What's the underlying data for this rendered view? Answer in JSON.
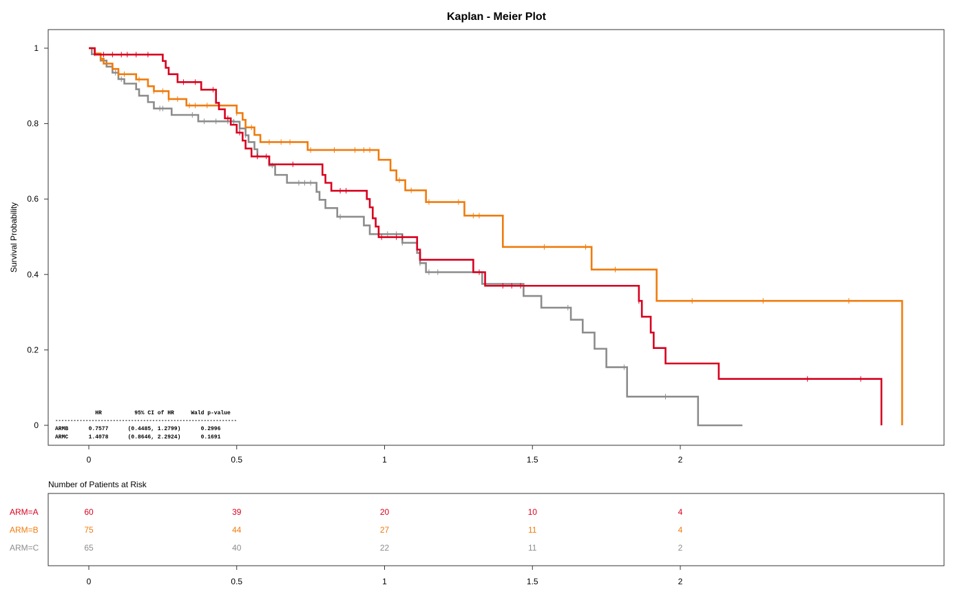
{
  "chart_data": {
    "type": "line",
    "title": "Kaplan - Meier Plot",
    "ylabel": "Survival Probability",
    "xlabel": "",
    "xlim": [
      -0.14,
      2.9
    ],
    "ylim": [
      -0.05,
      1.05
    ],
    "x_ticks": [
      0,
      0.5,
      1,
      1.5,
      2
    ],
    "x_tick_labels": [
      "0",
      "0.5",
      "1",
      "1.5",
      "2"
    ],
    "y_ticks": [
      0,
      0.2,
      0.4,
      0.6,
      0.8,
      1
    ],
    "y_tick_labels": [
      "0",
      "0.2",
      "0.4",
      "0.6",
      "0.8",
      "1"
    ],
    "series": [
      {
        "name": "ARM=A",
        "color": "#d7001f",
        "steps": [
          [
            0,
            1
          ],
          [
            0.02,
            0.983
          ],
          [
            0.25,
            0.966
          ],
          [
            0.26,
            0.948
          ],
          [
            0.27,
            0.931
          ],
          [
            0.3,
            0.91
          ],
          [
            0.38,
            0.89
          ],
          [
            0.43,
            0.855
          ],
          [
            0.44,
            0.838
          ],
          [
            0.46,
            0.814
          ],
          [
            0.48,
            0.797
          ],
          [
            0.5,
            0.776
          ],
          [
            0.52,
            0.755
          ],
          [
            0.53,
            0.734
          ],
          [
            0.55,
            0.713
          ],
          [
            0.61,
            0.692
          ],
          [
            0.79,
            0.664
          ],
          [
            0.8,
            0.643
          ],
          [
            0.82,
            0.622
          ],
          [
            0.94,
            0.6
          ],
          [
            0.95,
            0.578
          ],
          [
            0.96,
            0.549
          ],
          [
            0.97,
            0.527
          ],
          [
            0.98,
            0.499
          ],
          [
            1.11,
            0.466
          ],
          [
            1.12,
            0.439
          ],
          [
            1.3,
            0.406
          ],
          [
            1.34,
            0.37
          ],
          [
            1.86,
            0.33
          ],
          [
            1.87,
            0.288
          ],
          [
            1.9,
            0.246
          ],
          [
            1.91,
            0.205
          ],
          [
            1.95,
            0.164
          ],
          [
            2.13,
            0.123
          ],
          [
            2.68,
            0
          ]
        ],
        "censor_x": [
          0.05,
          0.08,
          0.11,
          0.13,
          0.16,
          0.2,
          0.32,
          0.36,
          0.42,
          0.47,
          0.51,
          0.57,
          0.6,
          0.69,
          0.85,
          0.87,
          0.99,
          1.04,
          1.06,
          1.32,
          1.4,
          1.43,
          1.46,
          1.86,
          2.43,
          2.61
        ],
        "end_x": 2.68
      },
      {
        "name": "ARM=B",
        "color": "#f07b0c",
        "steps": [
          [
            0,
            1
          ],
          [
            0.02,
            0.986
          ],
          [
            0.04,
            0.972
          ],
          [
            0.05,
            0.959
          ],
          [
            0.08,
            0.945
          ],
          [
            0.1,
            0.931
          ],
          [
            0.15,
            0.931
          ],
          [
            0.16,
            0.917
          ],
          [
            0.19,
            0.917
          ],
          [
            0.2,
            0.899
          ],
          [
            0.22,
            0.886
          ],
          [
            0.27,
            0.865
          ],
          [
            0.28,
            0.865
          ],
          [
            0.33,
            0.848
          ],
          [
            0.34,
            0.848
          ],
          [
            0.5,
            0.828
          ],
          [
            0.52,
            0.81
          ],
          [
            0.53,
            0.79
          ],
          [
            0.56,
            0.77
          ],
          [
            0.58,
            0.751
          ],
          [
            0.74,
            0.73
          ],
          [
            0.98,
            0.704
          ],
          [
            1.02,
            0.676
          ],
          [
            1.04,
            0.65
          ],
          [
            1.07,
            0.623
          ],
          [
            1.14,
            0.592
          ],
          [
            1.27,
            0.556
          ],
          [
            1.4,
            0.473
          ],
          [
            1.7,
            0.413
          ],
          [
            1.92,
            0.33
          ],
          [
            2.75,
            0
          ]
        ],
        "censor_x": [
          0.02,
          0.04,
          0.1,
          0.12,
          0.17,
          0.22,
          0.25,
          0.27,
          0.3,
          0.34,
          0.36,
          0.4,
          0.5,
          0.55,
          0.61,
          0.65,
          0.68,
          0.75,
          0.83,
          0.9,
          0.93,
          0.95,
          1.05,
          1.09,
          1.15,
          1.25,
          1.3,
          1.32,
          1.54,
          1.68,
          1.78,
          2.04,
          2.28,
          2.57
        ],
        "end_x": 2.75
      },
      {
        "name": "ARM=C",
        "color": "#8c8c8c",
        "steps": [
          [
            0,
            1
          ],
          [
            0.01,
            0.984
          ],
          [
            0.04,
            0.967
          ],
          [
            0.06,
            0.951
          ],
          [
            0.08,
            0.935
          ],
          [
            0.1,
            0.918
          ],
          [
            0.12,
            0.906
          ],
          [
            0.16,
            0.891
          ],
          [
            0.17,
            0.874
          ],
          [
            0.2,
            0.857
          ],
          [
            0.22,
            0.84
          ],
          [
            0.28,
            0.823
          ],
          [
            0.37,
            0.806
          ],
          [
            0.49,
            0.805
          ],
          [
            0.51,
            0.787
          ],
          [
            0.53,
            0.769
          ],
          [
            0.54,
            0.751
          ],
          [
            0.56,
            0.732
          ],
          [
            0.57,
            0.713
          ],
          [
            0.61,
            0.689
          ],
          [
            0.63,
            0.664
          ],
          [
            0.67,
            0.643
          ],
          [
            0.77,
            0.619
          ],
          [
            0.78,
            0.598
          ],
          [
            0.8,
            0.576
          ],
          [
            0.84,
            0.553
          ],
          [
            0.93,
            0.53
          ],
          [
            0.95,
            0.507
          ],
          [
            1.06,
            0.484
          ],
          [
            1.11,
            0.457
          ],
          [
            1.12,
            0.43
          ],
          [
            1.14,
            0.406
          ],
          [
            1.33,
            0.375
          ],
          [
            1.47,
            0.343
          ],
          [
            1.53,
            0.312
          ],
          [
            1.63,
            0.28
          ],
          [
            1.67,
            0.246
          ],
          [
            1.71,
            0.203
          ],
          [
            1.75,
            0.154
          ],
          [
            1.82,
            0.076
          ],
          [
            2.06,
            0
          ]
        ],
        "censor_x": [
          0.05,
          0.09,
          0.11,
          0.24,
          0.25,
          0.35,
          0.39,
          0.43,
          0.47,
          0.49,
          0.51,
          0.53,
          0.57,
          0.62,
          0.71,
          0.73,
          0.75,
          0.85,
          1.01,
          1.04,
          1.06,
          1.12,
          1.15,
          1.18,
          1.34,
          1.62,
          1.81,
          1.95
        ],
        "end_x": 2.21
      }
    ]
  },
  "hr_table": {
    "header_hr": "HR",
    "header_ci": "95% CI of HR",
    "header_p": "Wald p-value",
    "divider": "------------------------------------------------------------",
    "rows": [
      {
        "arm": "ARMB",
        "hr": "0.7577",
        "ci": "(0.4485, 1.2799)",
        "p": "0.2996"
      },
      {
        "arm": "ARMC",
        "hr": "1.4078",
        "ci": "(0.8646, 2.2924)",
        "p": "0.1691"
      }
    ]
  },
  "risk_table": {
    "title": "Number of Patients at Risk",
    "time_points": [
      0,
      0.5,
      1,
      1.5,
      2
    ],
    "tick_labels": [
      "0",
      "0.5",
      "1",
      "1.5",
      "2"
    ],
    "rows": [
      {
        "label": "ARM=A",
        "color": "#d7001f",
        "values": [
          "60",
          "39",
          "20",
          "10",
          "4"
        ]
      },
      {
        "label": "ARM=B",
        "color": "#f07b0c",
        "values": [
          "75",
          "44",
          "27",
          "11",
          "4"
        ]
      },
      {
        "label": "ARM=C",
        "color": "#8c8c8c",
        "values": [
          "65",
          "40",
          "22",
          "11",
          "2"
        ]
      }
    ]
  }
}
